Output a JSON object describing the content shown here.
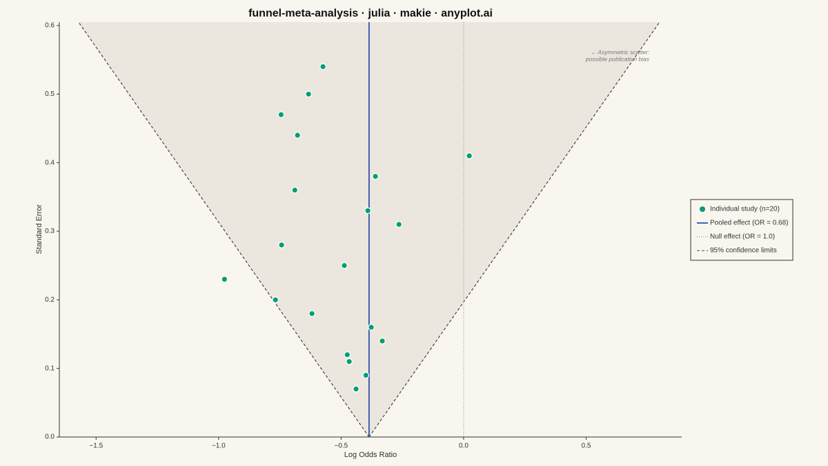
{
  "chart_data": {
    "type": "scatter",
    "title": "funnel-meta-analysis · julia · makie · anyplot.ai",
    "xlabel": "Log Odds Ratio",
    "ylabel": "Standard Error",
    "xlim": [
      -1.65,
      0.89
    ],
    "ylim": [
      0,
      0.605
    ],
    "xticks": [
      {
        "value": -1.5,
        "label": "−1.5"
      },
      {
        "value": -1.0,
        "label": "−1.0"
      },
      {
        "value": -0.5,
        "label": "−0.5"
      },
      {
        "value": 0.0,
        "label": "0.0"
      },
      0.5
    ],
    "yticks": [
      {
        "value": 0,
        "label": "0.0"
      },
      0.1,
      0.2,
      0.3,
      0.4,
      0.5,
      0.6
    ],
    "series": [
      {
        "name": "Individual study (n=20)",
        "color": "#009e73",
        "x": [
          -0.574,
          -0.633,
          -0.745,
          -0.678,
          0.023,
          -0.36,
          -0.689,
          -0.391,
          -0.264,
          -0.743,
          -0.487,
          -0.976,
          -0.768,
          -0.619,
          -0.377,
          -0.332,
          -0.475,
          -0.467,
          -0.399,
          -0.439
        ],
        "values": [
          0.54,
          0.5,
          0.47,
          0.44,
          0.41,
          0.38,
          0.36,
          0.33,
          0.31,
          0.28,
          0.25,
          0.23,
          0.2,
          0.18,
          0.16,
          0.14,
          0.12,
          0.11,
          0.09,
          0.07
        ]
      }
    ],
    "pooled": {
      "name": "Pooled effect (OR = 0.68)",
      "value": -0.386,
      "color": "#2f4fb0"
    },
    "null_effect": {
      "name": "Null effect (OR = 1.0)",
      "value": 0.0,
      "color": "#888888"
    },
    "funnel": {
      "name": "95% confidence limits",
      "z": 1.96,
      "color": "#444444"
    },
    "annotation": [
      "← Asymmetric scatter:",
      "possible publication bias"
    ],
    "legend": "right"
  }
}
